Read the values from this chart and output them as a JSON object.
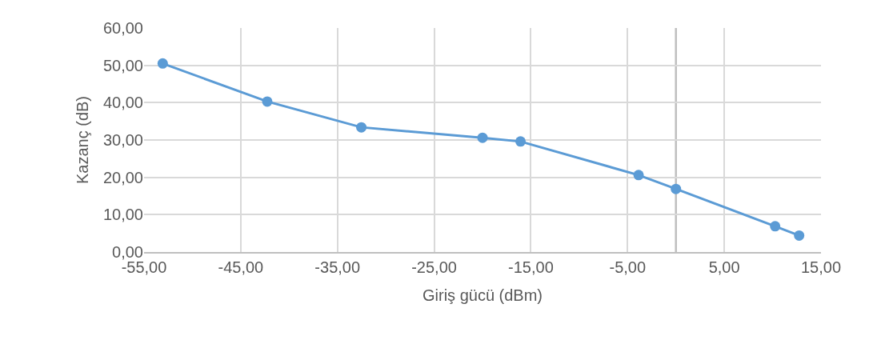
{
  "chart_data": {
    "type": "line",
    "xlabel": "Giriş gücü (dBm)",
    "ylabel": "Kazanç (dB)",
    "x": [
      -53.07,
      -42.26,
      -32.53,
      -20.0,
      -16.07,
      -3.86,
      0.0,
      10.26,
      12.74
    ],
    "series": [
      {
        "color": "#5b9bd5",
        "values": [
          50.5,
          40.3,
          33.4,
          30.6,
          29.6,
          20.6,
          16.9,
          6.9,
          4.4
        ]
      }
    ],
    "xlim": [
      -55,
      15
    ],
    "xticks": [
      {
        "value": -55,
        "label": "-55,00"
      },
      {
        "value": -45,
        "label": "-45,00"
      },
      {
        "value": -35,
        "label": "-35,00"
      },
      {
        "value": -25,
        "label": "-25,00"
      },
      {
        "value": -15,
        "label": "-15,00"
      },
      {
        "value": -5,
        "label": "-5,00"
      },
      {
        "value": 5,
        "label": "5,00"
      },
      {
        "value": 15,
        "label": "15,00"
      }
    ],
    "ylim": [
      0,
      60
    ],
    "yticks": [
      {
        "value": 0,
        "label": "0,00"
      },
      {
        "value": 10,
        "label": "10,00"
      },
      {
        "value": 20,
        "label": "20,00"
      },
      {
        "value": 30,
        "label": "30,00"
      },
      {
        "value": 40,
        "label": "40,00"
      },
      {
        "value": 50,
        "label": "50,00"
      },
      {
        "value": 60,
        "label": "60,00"
      }
    ],
    "ref_lines": [
      {
        "axis": "x",
        "value": 0,
        "color": "#bfbfbf"
      }
    ],
    "grid": true,
    "marker": "circle"
  }
}
